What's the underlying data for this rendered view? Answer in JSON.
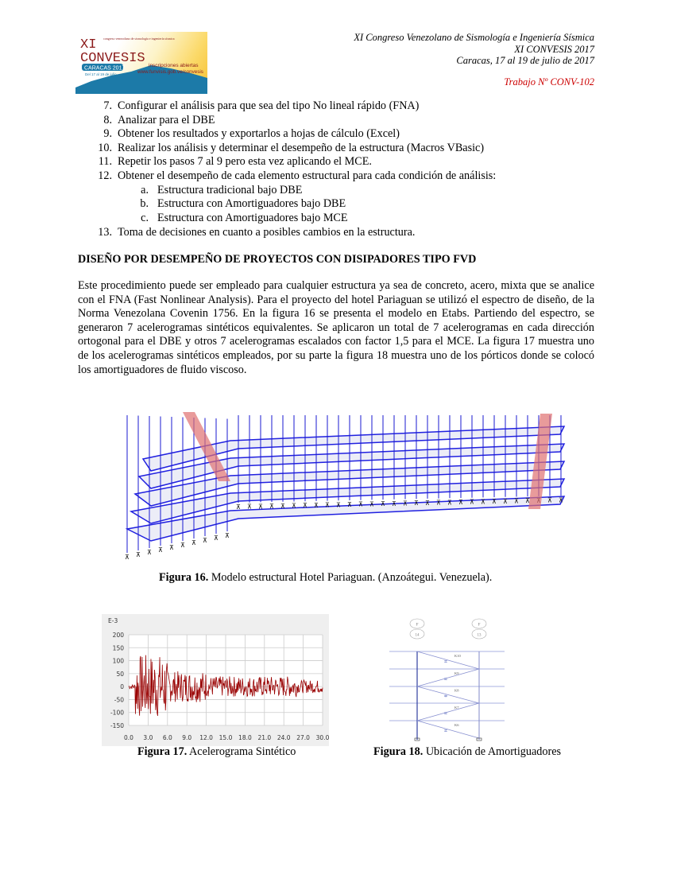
{
  "header": {
    "line1": "XI Congreso Venezolano de Sismología e Ingeniería Sísmica",
    "line2": "XI CONVESIS 2017",
    "line3": "Caracas, 17 al 19 de julio de 2017",
    "work": "Trabajo Nº CONV-102",
    "work_color": "#cc0000"
  },
  "logo": {
    "title1": "XI",
    "title2": "CONVESIS",
    "subtitle": "congreso venezolano de sismología e ingeniería sísmica",
    "city": "CARACAS 2017",
    "dates": "Del 17 al 19 de julio",
    "signup": "inscripciones abiertas",
    "url": "www.funvisis.gob.ve/convesis"
  },
  "steps": [
    {
      "n": "7.",
      "t": "Configurar el análisis para que sea del tipo No lineal rápido (FNA)"
    },
    {
      "n": "8.",
      "t": "Analizar para el DBE"
    },
    {
      "n": "9.",
      "t": "Obtener los resultados y exportarlos a hojas de cálculo (Excel)"
    },
    {
      "n": "10.",
      "t": "Realizar los análisis y determinar el desempeño de la estructura (Macros VBasic)"
    },
    {
      "n": "11.",
      "t": "Repetir los pasos 7 al 9 pero esta vez aplicando el MCE."
    },
    {
      "n": "12.",
      "t": "Obtener el desempeño de cada elemento estructural para cada condición de análisis:"
    }
  ],
  "substeps": [
    {
      "n": "a.",
      "t": "Estructura tradicional bajo DBE"
    },
    {
      "n": "b.",
      "t": "Estructura con Amortiguadores bajo DBE"
    },
    {
      "n": "c.",
      "t": "Estructura con Amortiguadores bajo MCE"
    }
  ],
  "step13": {
    "n": "13.",
    "t": "Toma de decisiones en cuanto a posibles cambios en la estructura."
  },
  "heading": "DISEÑO POR DESEMPEÑO DE PROYECTOS CON DISIPADORES TIPO FVD",
  "paragraph": "Este procedimiento puede ser empleado para cualquier estructura ya sea de concreto, acero, mixta que se analice con el FNA (Fast Nonlinear Analysis). Para el proyecto del hotel Pariaguan se utilizó el espectro de diseño, de la Norma Venezolana Covenin 1756. En la figura 16 se presenta el modelo en Etabs. Partiendo del espectro, se generaron 7 acelerogramas  sintéticos equivalentes. Se aplicaron un total de 7 acelerogramas en cada dirección ortogonal para el DBE y otros 7 acelerogramas escalados con factor 1,5 para el MCE. La figura 17 muestra uno de los acelerogramas sintéticos empleados, por su parte la figura 18 muestra uno de los pórticos donde se colocó los amortiguadores de fluido viscoso.",
  "fig16": {
    "label": "Figura 16.",
    "caption": " Modelo estructural Hotel Pariaguan. (Anzoátegui. Venezuela)."
  },
  "fig17": {
    "label": "Figura 17.",
    "caption": " Acelerograma Sintético",
    "unit": "E-3",
    "yticks": [
      "200",
      "150",
      "100",
      "50",
      "0",
      "-50",
      "-100",
      "-150"
    ],
    "xticks": [
      "0.0",
      "3.0",
      "6.0",
      "9.0",
      "12.0",
      "15.0",
      "18.0",
      "21.0",
      "24.0",
      "27.0",
      "30.0"
    ],
    "line_color": "#990000"
  },
  "fig18": {
    "label": "Figura 18.",
    "caption": " Ubicación de Amortiguadores",
    "grid_left": [
      "F",
      "14"
    ],
    "grid_right": [
      "F",
      "13"
    ],
    "dampers": [
      "K10",
      "K9",
      "K8",
      "K7",
      "K6"
    ]
  }
}
